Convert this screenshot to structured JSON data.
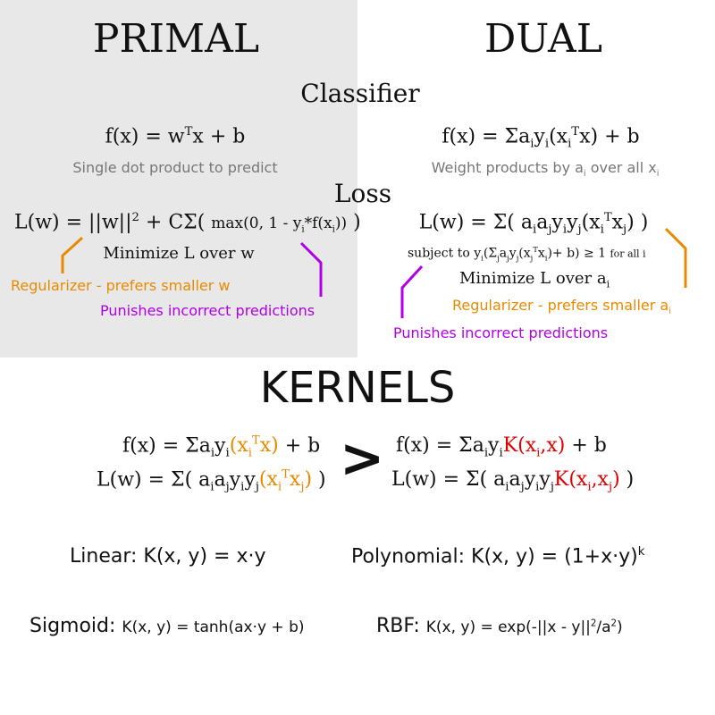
{
  "headings": {
    "primal": "PRIMAL",
    "dual": "DUAL",
    "classifier": "Classifier",
    "loss": "Loss",
    "kernels": "KERNELS"
  },
  "primal": {
    "classifier_caption": "Single dot product to predict",
    "minimize": "Minimize L over w",
    "regularizer_note": "Regularizer - prefers smaller w",
    "punish_note": "Punishes incorrect predictions"
  },
  "dual": {
    "classifier_caption": "Weight products by a",
    "classifier_caption_mid": " over all x",
    "subject_to": "subject to",
    "for_all": "for all i",
    "minimize": "Minimize L over a",
    "regularizer_note": "Regularizer - prefers smaller a",
    "punish_note": "Punishes incorrect predictions"
  },
  "kernels": {
    "arrow": ">",
    "linear_label": "Linear:",
    "linear_formula": "K(x, y) = x·y",
    "poly_label": "Polynomial:",
    "poly_formula": "K(x, y) = (1+x·y)",
    "poly_exp": "k",
    "sigmoid_label": "Sigmoid:",
    "sigmoid_formula": "K(x, y) = tanh(ax·y + b)",
    "rbf_label": "RBF:",
    "rbf_formula_a": "K(x, y) = exp(-||x - y||",
    "rbf_formula_b": "/a",
    "rbf_formula_c": ")"
  },
  "colors": {
    "orange": "#e88a00",
    "purple": "#b000e8",
    "red": "#e00000",
    "primal_bg": "#e8e8e8"
  }
}
